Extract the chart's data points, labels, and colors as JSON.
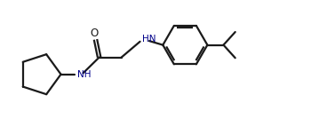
{
  "background_color": "#ffffff",
  "line_color": "#1a1a1a",
  "nh_color": "#00008B",
  "o_color": "#1a1a1a",
  "line_width": 1.6,
  "figsize": [
    3.68,
    1.43
  ],
  "dpi": 100,
  "xlim": [
    0,
    10.5
  ],
  "ylim": [
    -2.0,
    2.0
  ]
}
